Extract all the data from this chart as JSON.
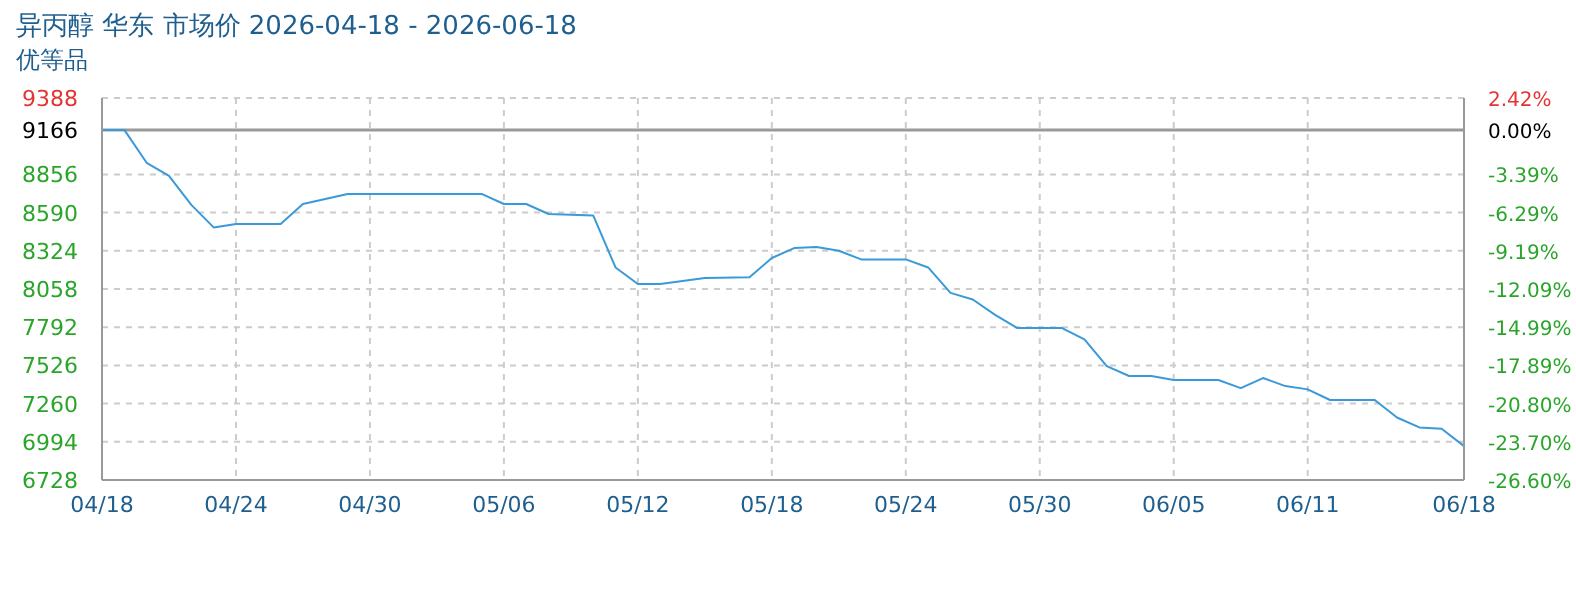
{
  "chart_data": {
    "type": "line",
    "title": "异丙醇 华东 市场价 2026-04-18 - 2026-06-18",
    "subtitle": "优等品",
    "x": [
      "2026-04-18",
      "2026-04-19",
      "2026-04-20",
      "2026-04-21",
      "2026-04-22",
      "2026-04-23",
      "2026-04-24",
      "2026-04-26",
      "2026-04-27",
      "2026-04-29",
      "2026-05-05",
      "2026-05-06",
      "2026-05-07",
      "2026-05-08",
      "2026-05-10",
      "2026-05-11",
      "2026-05-12",
      "2026-05-13",
      "2026-05-15",
      "2026-05-17",
      "2026-05-18",
      "2026-05-19",
      "2026-05-20",
      "2026-05-21",
      "2026-05-22",
      "2026-05-24",
      "2026-05-25",
      "2026-05-26",
      "2026-05-27",
      "2026-05-28",
      "2026-05-29",
      "2026-05-31",
      "2026-06-01",
      "2026-06-02",
      "2026-06-03",
      "2026-06-04",
      "2026-06-05",
      "2026-06-07",
      "2026-06-08",
      "2026-06-09",
      "2026-06-10",
      "2026-06-11",
      "2026-06-12",
      "2026-06-14",
      "2026-06-15",
      "2026-06-16",
      "2026-06-17",
      "2026-06-18"
    ],
    "series": [
      {
        "color": "#3a9ad9",
        "values": [
          9166,
          9166,
          8937,
          8845,
          8644,
          8487,
          8510,
          8510,
          8650,
          8720,
          8720,
          8650,
          8650,
          8580,
          8570,
          8208,
          8093,
          8093,
          8135,
          8140,
          8274,
          8343,
          8350,
          8324,
          8264,
          8264,
          8208,
          8031,
          7985,
          7878,
          7786,
          7786,
          7707,
          7521,
          7452,
          7452,
          7424,
          7424,
          7368,
          7438,
          7382,
          7359,
          7285,
          7285,
          7163,
          7094,
          7085,
          6964
        ]
      }
    ],
    "xlim": [
      "2026-04-18",
      "2026-06-18"
    ],
    "xticks": [
      {
        "value": "2026-04-18",
        "label": "04/18"
      },
      {
        "value": "2026-04-24",
        "label": "04/24"
      },
      {
        "value": "2026-04-30",
        "label": "04/30"
      },
      {
        "value": "2026-05-06",
        "label": "05/06"
      },
      {
        "value": "2026-05-12",
        "label": "05/12"
      },
      {
        "value": "2026-05-18",
        "label": "05/18"
      },
      {
        "value": "2026-05-24",
        "label": "05/24"
      },
      {
        "value": "2026-05-30",
        "label": "05/30"
      },
      {
        "value": "2026-06-05",
        "label": "06/05"
      },
      {
        "value": "2026-06-11",
        "label": "06/11"
      },
      {
        "value": "2026-06-18",
        "label": "06/18"
      }
    ],
    "ylim": [
      6728,
      9388
    ],
    "yticks": [
      9388,
      9166,
      8856,
      8590,
      8324,
      8058,
      7792,
      7526,
      7260,
      6994,
      6728
    ],
    "y2lim": [
      -26.6,
      2.42
    ],
    "y2ticks": [
      {
        "value": 2.42,
        "label": "2.42%"
      },
      {
        "value": 0,
        "label": "0.00%"
      },
      {
        "value": -3.39,
        "label": "-3.39%"
      },
      {
        "value": -6.29,
        "label": "-6.29%"
      },
      {
        "value": -9.19,
        "label": "-9.19%"
      },
      {
        "value": -12.09,
        "label": "-12.09%"
      },
      {
        "value": -14.99,
        "label": "-14.99%"
      },
      {
        "value": -17.89,
        "label": "-17.89%"
      },
      {
        "value": -20.8,
        "label": "-20.80%"
      },
      {
        "value": -23.7,
        "label": "-23.70%"
      },
      {
        "value": -26.6,
        "label": "-26.60%"
      }
    ],
    "ref_lines": [
      {
        "axis": "y",
        "value": 9166,
        "color": "#999999"
      }
    ],
    "grid": true,
    "line_style": "solid",
    "marker": "none"
  }
}
